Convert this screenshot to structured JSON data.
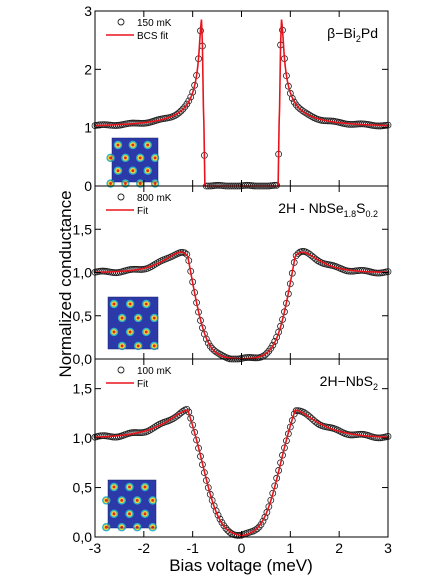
{
  "chart_data": [
    {
      "type": "scatter",
      "panel_label": {
        "main": "β−Bi",
        "sub": "2",
        "tail": "Pd",
        "sub2": "",
        "tail2": ""
      },
      "x_range": [
        -3,
        3
      ],
      "y_range": [
        0,
        3
      ],
      "y_ticks": [
        {
          "v": 0,
          "label": "0"
        },
        {
          "v": 1,
          "label": "1"
        },
        {
          "v": 2,
          "label": "2"
        },
        {
          "v": 3,
          "label": "3"
        }
      ],
      "legend": {
        "data_label": "150 mK",
        "fit_label": "BCS fit"
      },
      "curve": {
        "kind": "bcs",
        "delta": 0.78,
        "gamma": 0.012,
        "base": 1.0,
        "peak_cap": 2.95,
        "slope": 0.02
      },
      "inset": "hexagonal vortex lattice, 150 mK"
    },
    {
      "type": "scatter",
      "panel_label": {
        "main": "2H - NbSe",
        "sub": "1.8",
        "tail": "S",
        "sub2": "0.2",
        "tail2": ""
      },
      "x_range": [
        -3,
        3
      ],
      "y_range": [
        0,
        2
      ],
      "y_ticks": [
        {
          "v": 0,
          "label": "0,0"
        },
        {
          "v": 0.5,
          "label": "0,5"
        },
        {
          "v": 1,
          "label": "1,0"
        },
        {
          "v": 1.5,
          "label": "1,5"
        }
      ],
      "legend": {
        "data_label": "800 mK",
        "fit_label": "Fit"
      },
      "curve": {
        "kind": "broad",
        "peak_x": 1.1,
        "peak_y": 1.65,
        "edge": 0.95,
        "width": 0.16,
        "base": 1.0,
        "tail": 0.35
      },
      "inset": "hexagonal vortex lattice, 800 mK"
    },
    {
      "type": "scatter",
      "panel_label": {
        "main": "2H−NbS",
        "sub": "2",
        "tail": "",
        "sub2": "",
        "tail2": ""
      },
      "x_range": [
        -3,
        3
      ],
      "y_range": [
        0,
        1.8
      ],
      "y_ticks": [
        {
          "v": 0,
          "label": "0,0"
        },
        {
          "v": 0.5,
          "label": "0,5"
        },
        {
          "v": 1,
          "label": "1,0"
        },
        {
          "v": 1.5,
          "label": "1,5"
        }
      ],
      "legend": {
        "data_label": "100 mK",
        "fit_label": "Fit"
      },
      "curve": {
        "kind": "broad",
        "peak_x": 1.1,
        "peak_y": 1.42,
        "edge": 0.72,
        "width": 0.17,
        "base": 1.0,
        "tail": 0.5
      },
      "inset": "hexagonal vortex lattice, 100 mK"
    }
  ],
  "x_ticks": [
    {
      "v": -3,
      "label": "-3"
    },
    {
      "v": -2,
      "label": "-2"
    },
    {
      "v": -1,
      "label": "-1"
    },
    {
      "v": 0,
      "label": "0"
    },
    {
      "v": 1,
      "label": "1"
    },
    {
      "v": 2,
      "label": "2"
    },
    {
      "v": 3,
      "label": "3"
    }
  ],
  "xlabel": "Bias voltage (meV)",
  "ylabel": "Normalized conductance",
  "colors": {
    "fit": "#e8141c",
    "data": "#222222",
    "inset_bg": "#2b3aa8"
  }
}
